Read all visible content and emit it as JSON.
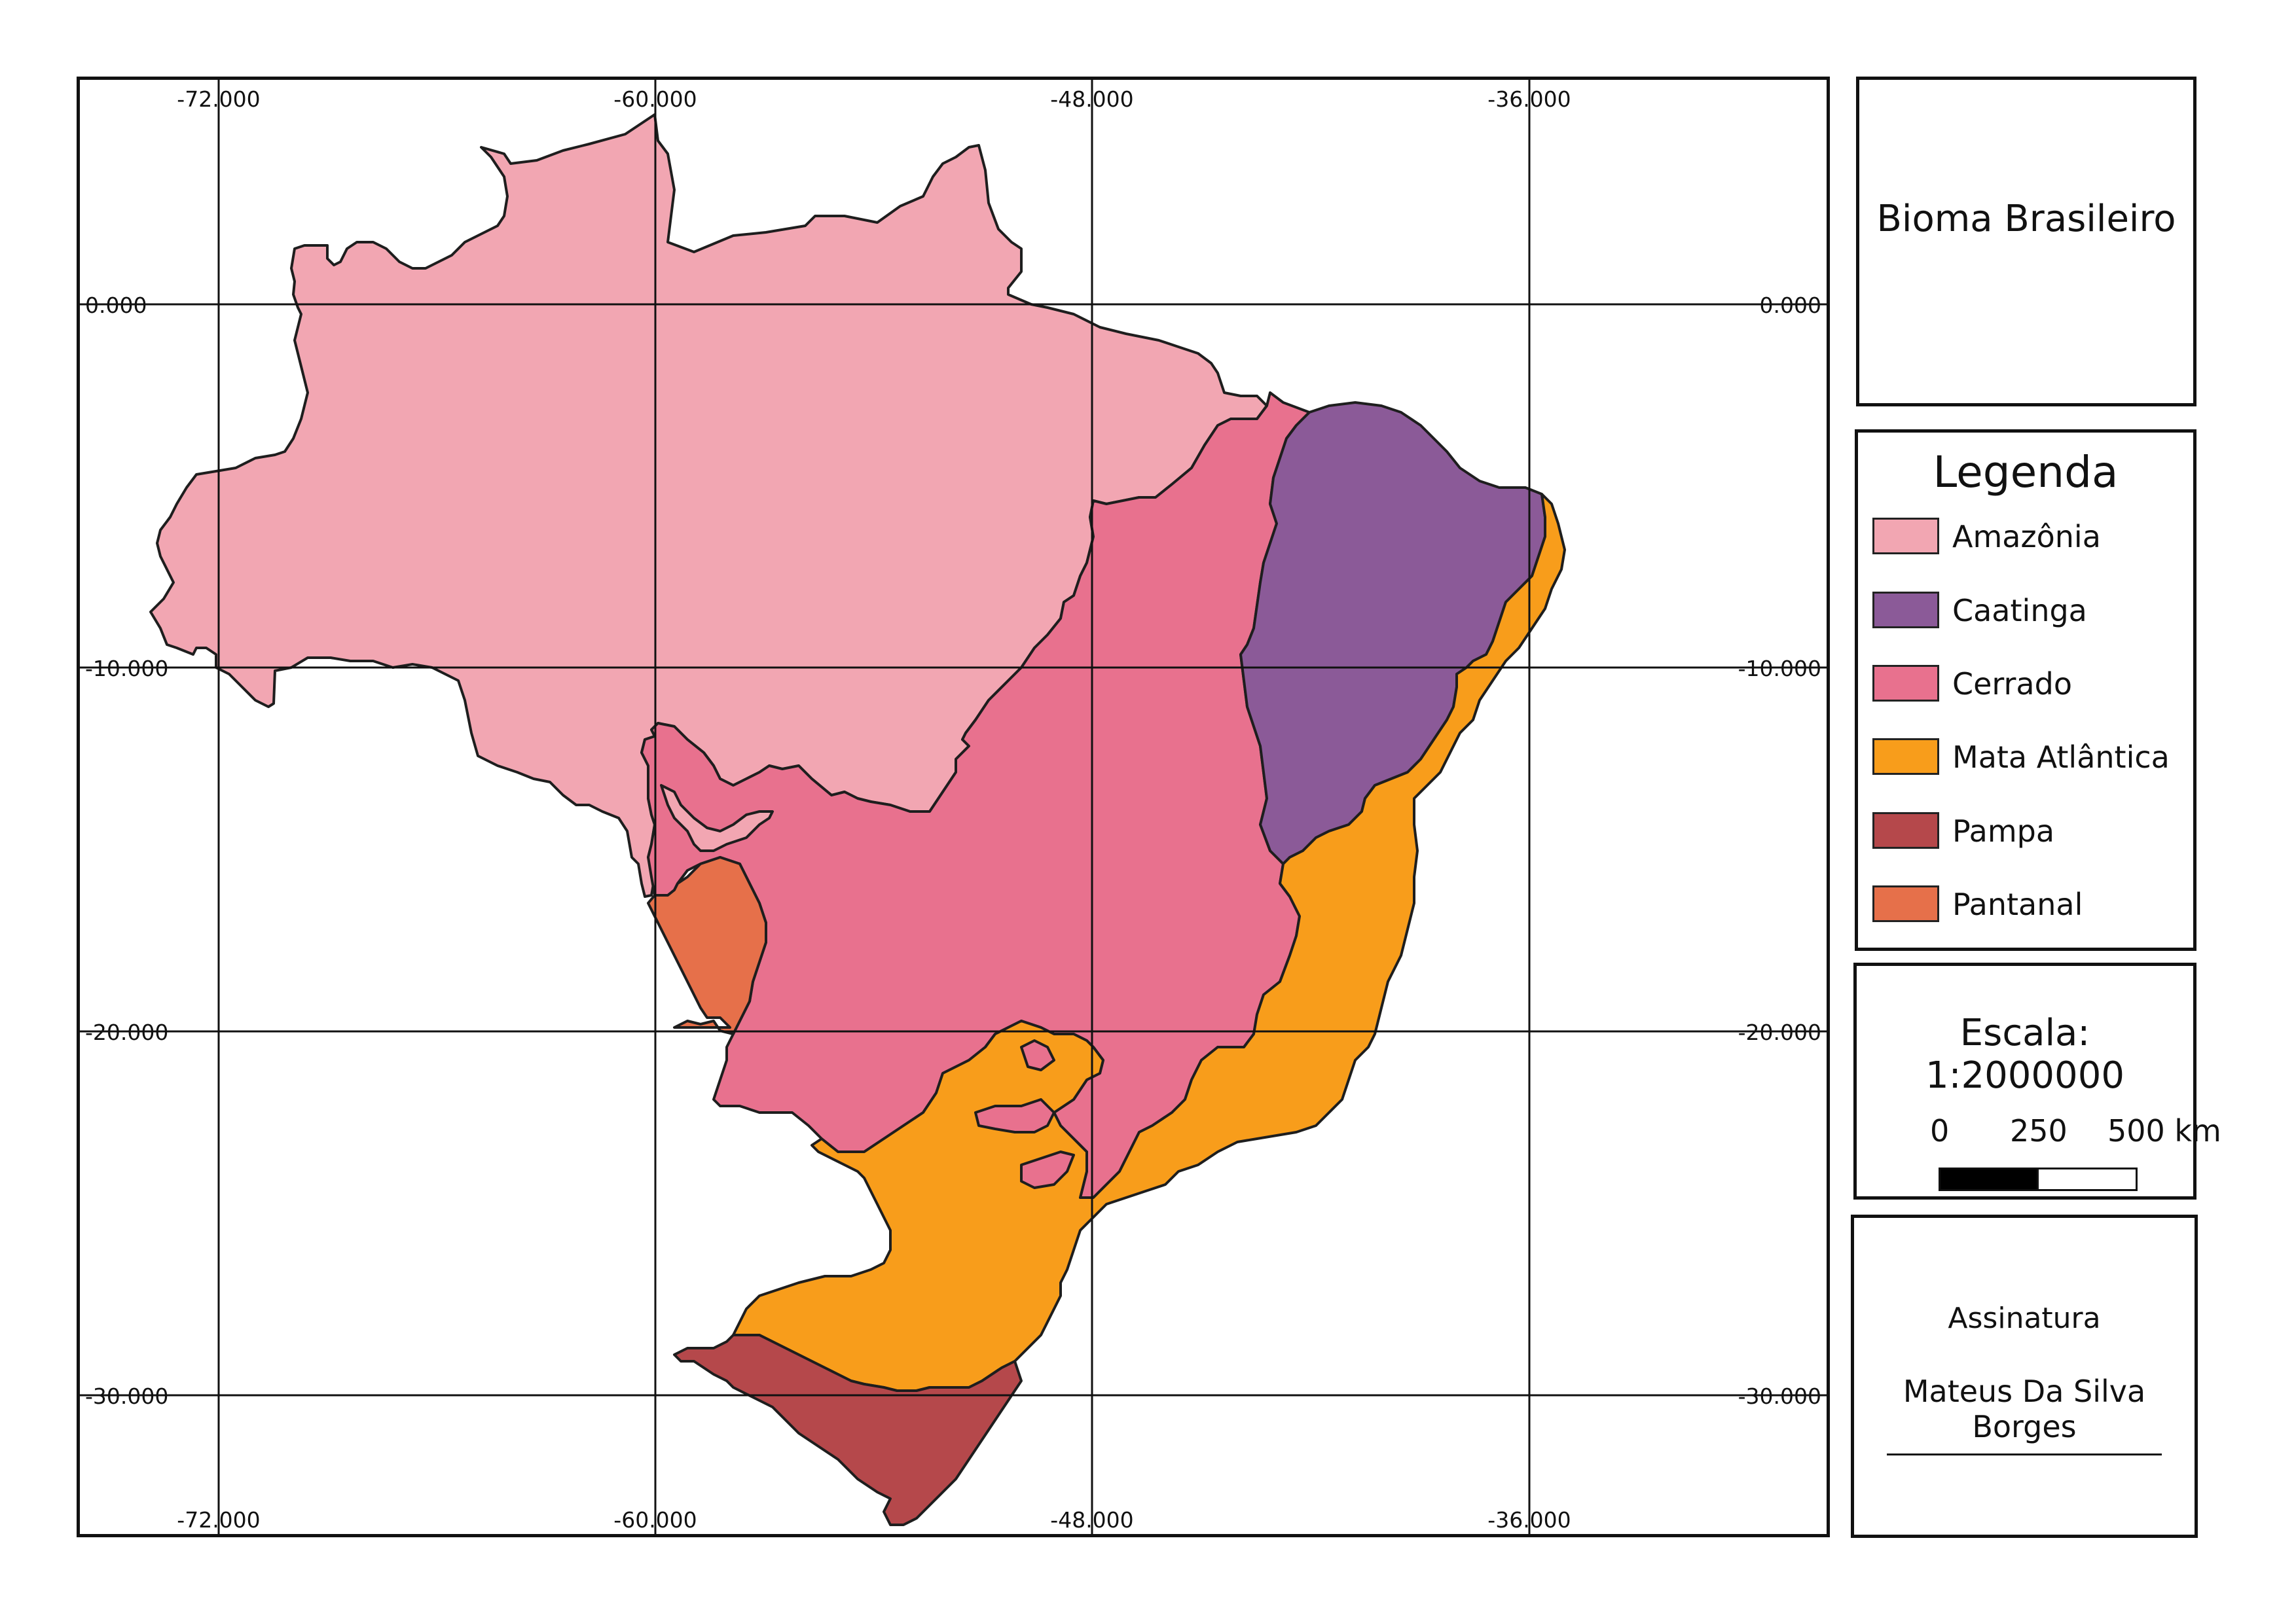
{
  "map": {
    "top_labels": [
      "-72.000",
      "-60.000",
      "-48.000",
      "-36.000"
    ],
    "bottom_labels": [
      "-72.000",
      "-60.000",
      "-48.000",
      "-36.000"
    ],
    "left_labels": [
      "0.000",
      "-10.000",
      "-20.000",
      "-30.000"
    ],
    "right_labels": [
      "0.000",
      "-10.000",
      "-20.000",
      "-30.000"
    ]
  },
  "title": {
    "text": "Bioma Brasileiro"
  },
  "legend": {
    "title": "Legenda",
    "items": [
      {
        "label": "Amazônia",
        "color": "#f2a6b2"
      },
      {
        "label": "Caatinga",
        "color": "#8b5a98"
      },
      {
        "label": "Cerrado",
        "color": "#e8718e"
      },
      {
        "label": "Mata Atlântica",
        "color": "#f89d1b"
      },
      {
        "label": "Pampa",
        "color": "#b5484b"
      },
      {
        "label": "Pantanal",
        "color": "#e6704a"
      }
    ]
  },
  "scale": {
    "title": "Escala: 1:2000000",
    "ticks": [
      "0",
      "250",
      "500 km"
    ]
  },
  "signature": {
    "label": "Assinatura",
    "name": "Mateus Da Silva Borges"
  }
}
